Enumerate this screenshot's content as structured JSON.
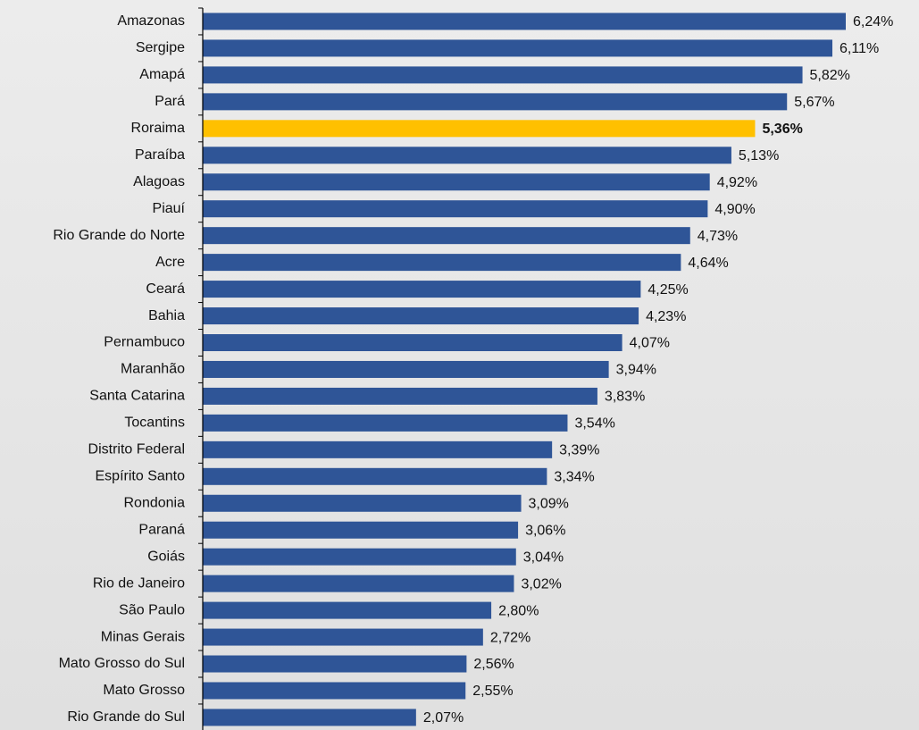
{
  "chart_data": {
    "type": "bar",
    "orientation": "horizontal",
    "categories": [
      "Amazonas",
      "Sergipe",
      "Amapá",
      "Pará",
      "Roraima",
      "Paraíba",
      "Alagoas",
      "Piauí",
      "Rio Grande do Norte",
      "Acre",
      "Ceará",
      "Bahia",
      "Pernambuco",
      "Maranhão",
      "Santa Catarina",
      "Tocantins",
      "Distrito Federal",
      "Espírito Santo",
      "Rondonia",
      "Paraná",
      "Goiás",
      "Rio de Janeiro",
      "São Paulo",
      "Minas Gerais",
      "Mato Grosso do Sul",
      "Mato Grosso",
      "Rio Grande do Sul"
    ],
    "values": [
      6.24,
      6.11,
      5.82,
      5.67,
      5.36,
      5.13,
      4.92,
      4.9,
      4.73,
      4.64,
      4.25,
      4.23,
      4.07,
      3.94,
      3.83,
      3.54,
      3.39,
      3.34,
      3.09,
      3.06,
      3.04,
      3.02,
      2.8,
      2.72,
      2.56,
      2.55,
      2.07
    ],
    "value_labels": [
      "6,24%",
      "6,11%",
      "5,82%",
      "5,67%",
      "5,36%",
      "5,13%",
      "4,92%",
      "4,90%",
      "4,73%",
      "4,64%",
      "4,25%",
      "4,23%",
      "4,07%",
      "3,94%",
      "3,83%",
      "3,54%",
      "3,39%",
      "3,34%",
      "3,09%",
      "3,06%",
      "3,04%",
      "3,02%",
      "2,80%",
      "2,72%",
      "2,56%",
      "2,55%",
      "2,07%"
    ],
    "color": "#2f5597",
    "highlight_index": 4,
    "highlight_color": "#ffc000"
  }
}
